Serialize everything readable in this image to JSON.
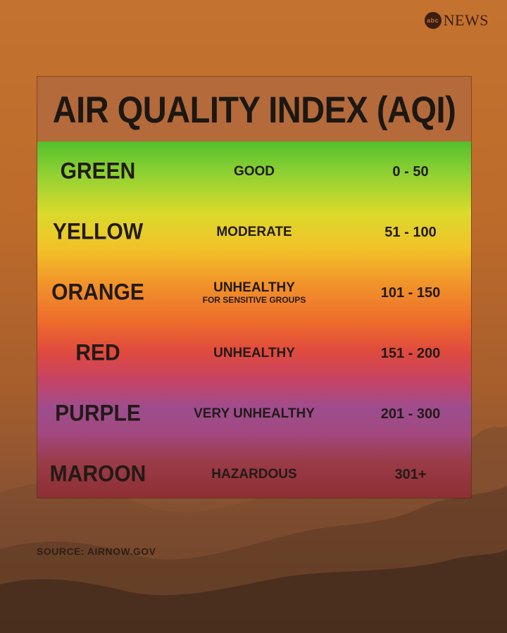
{
  "logo": {
    "circle": "abc",
    "text": "NEWS"
  },
  "title": "AIR QUALITY INDEX (AQI)",
  "rows": [
    {
      "color": "GREEN",
      "description": "GOOD",
      "sub": "",
      "range": "0 - 50"
    },
    {
      "color": "YELLOW",
      "description": "MODERATE",
      "sub": "",
      "range": "51 - 100"
    },
    {
      "color": "ORANGE",
      "description": "UNHEALTHY",
      "sub": "FOR SENSITIVE GROUPS",
      "range": "101 - 150"
    },
    {
      "color": "RED",
      "description": "UNHEALTHY",
      "sub": "",
      "range": "151 - 200"
    },
    {
      "color": "PURPLE",
      "description": "VERY UNHEALTHY",
      "sub": "",
      "range": "201 - 300"
    },
    {
      "color": "MAROON",
      "description": "HAZARDOUS",
      "sub": "",
      "range": "301+"
    }
  ],
  "source": "SOURCE: AIRNOW.GOV"
}
